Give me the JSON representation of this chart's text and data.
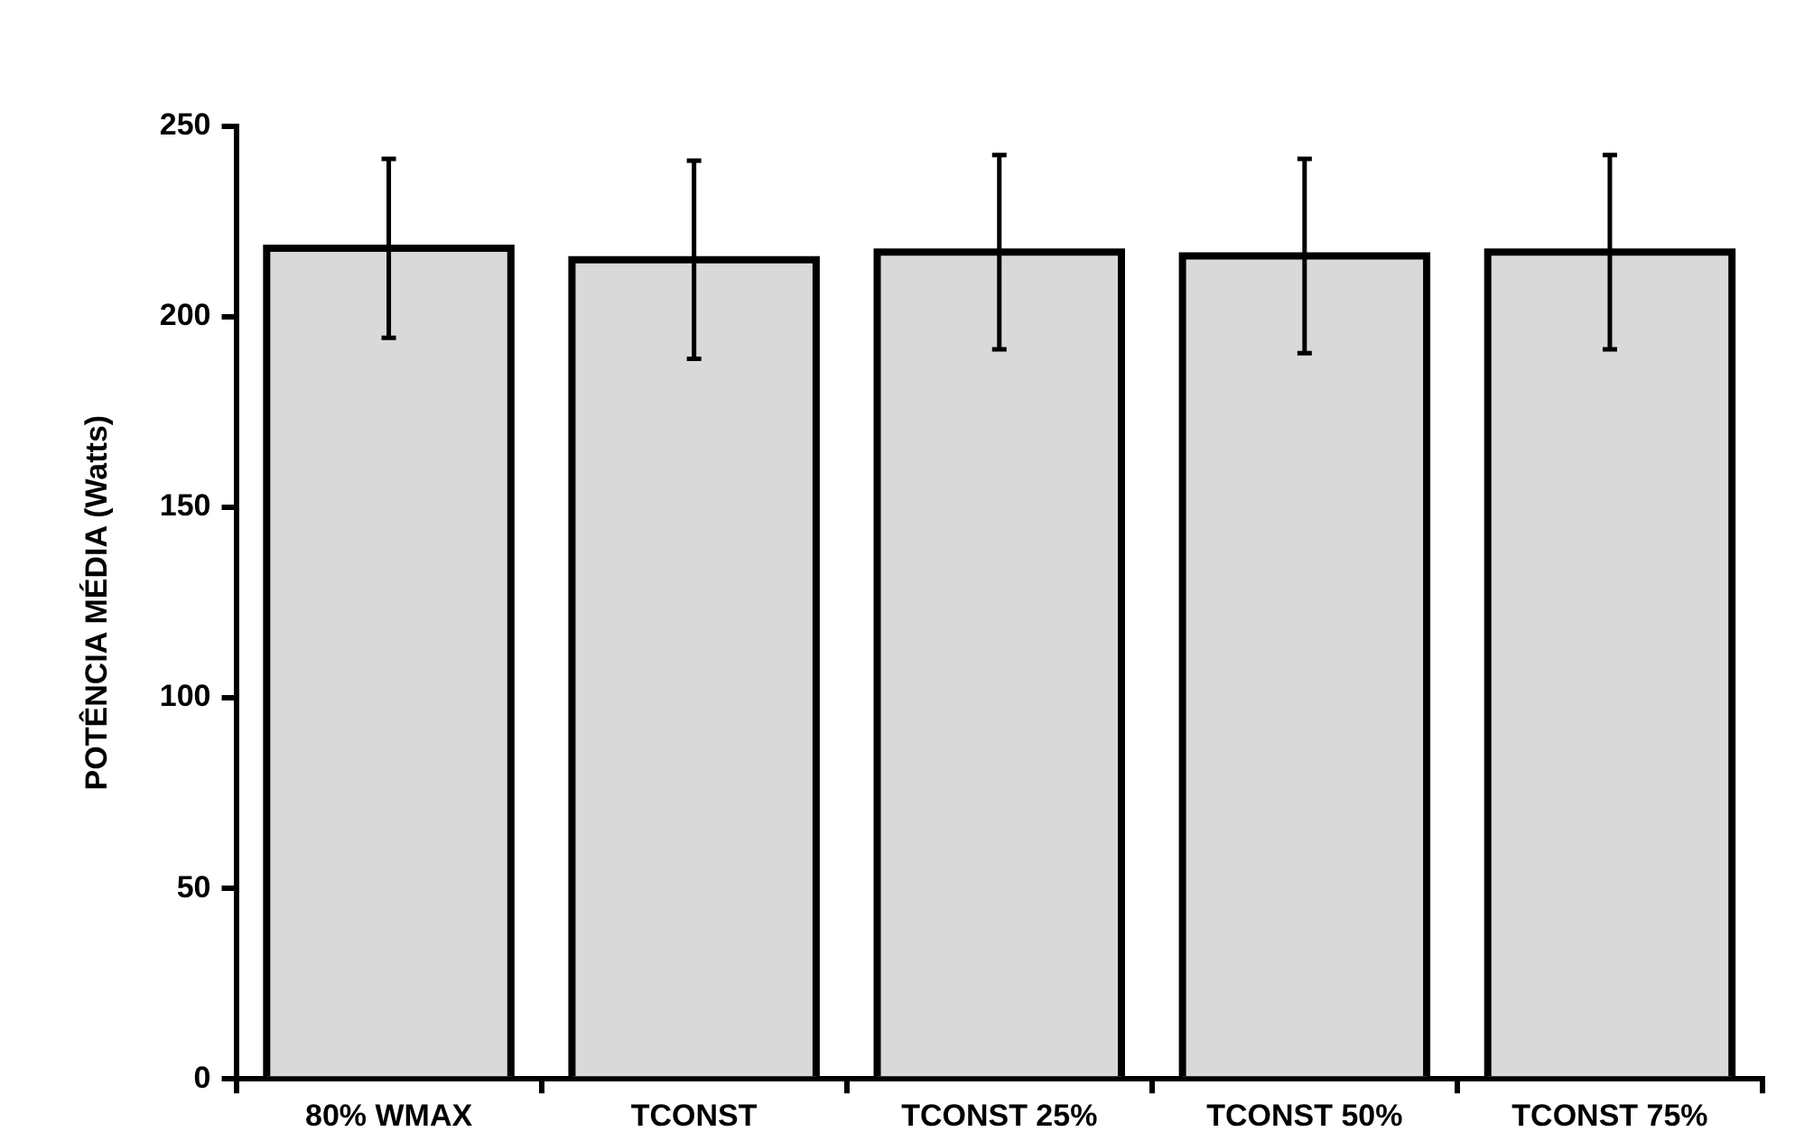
{
  "chart_data": {
    "type": "bar",
    "ylabel": "POTÊNCIA MÉDIA (Watts)",
    "categories": [
      "80% WMAX",
      "TCONST",
      "TCONST 25%",
      "TCONST 50%",
      "TCONST 75%"
    ],
    "values": [
      218,
      215,
      217,
      216,
      217
    ],
    "errors": [
      23.5,
      26,
      25.5,
      25.5,
      25.5
    ],
    "color": "#d9d9d9",
    "ylim": [
      0,
      250
    ],
    "yticks": [
      0,
      50,
      100,
      150,
      200,
      250
    ],
    "grid": false,
    "legend": false
  }
}
